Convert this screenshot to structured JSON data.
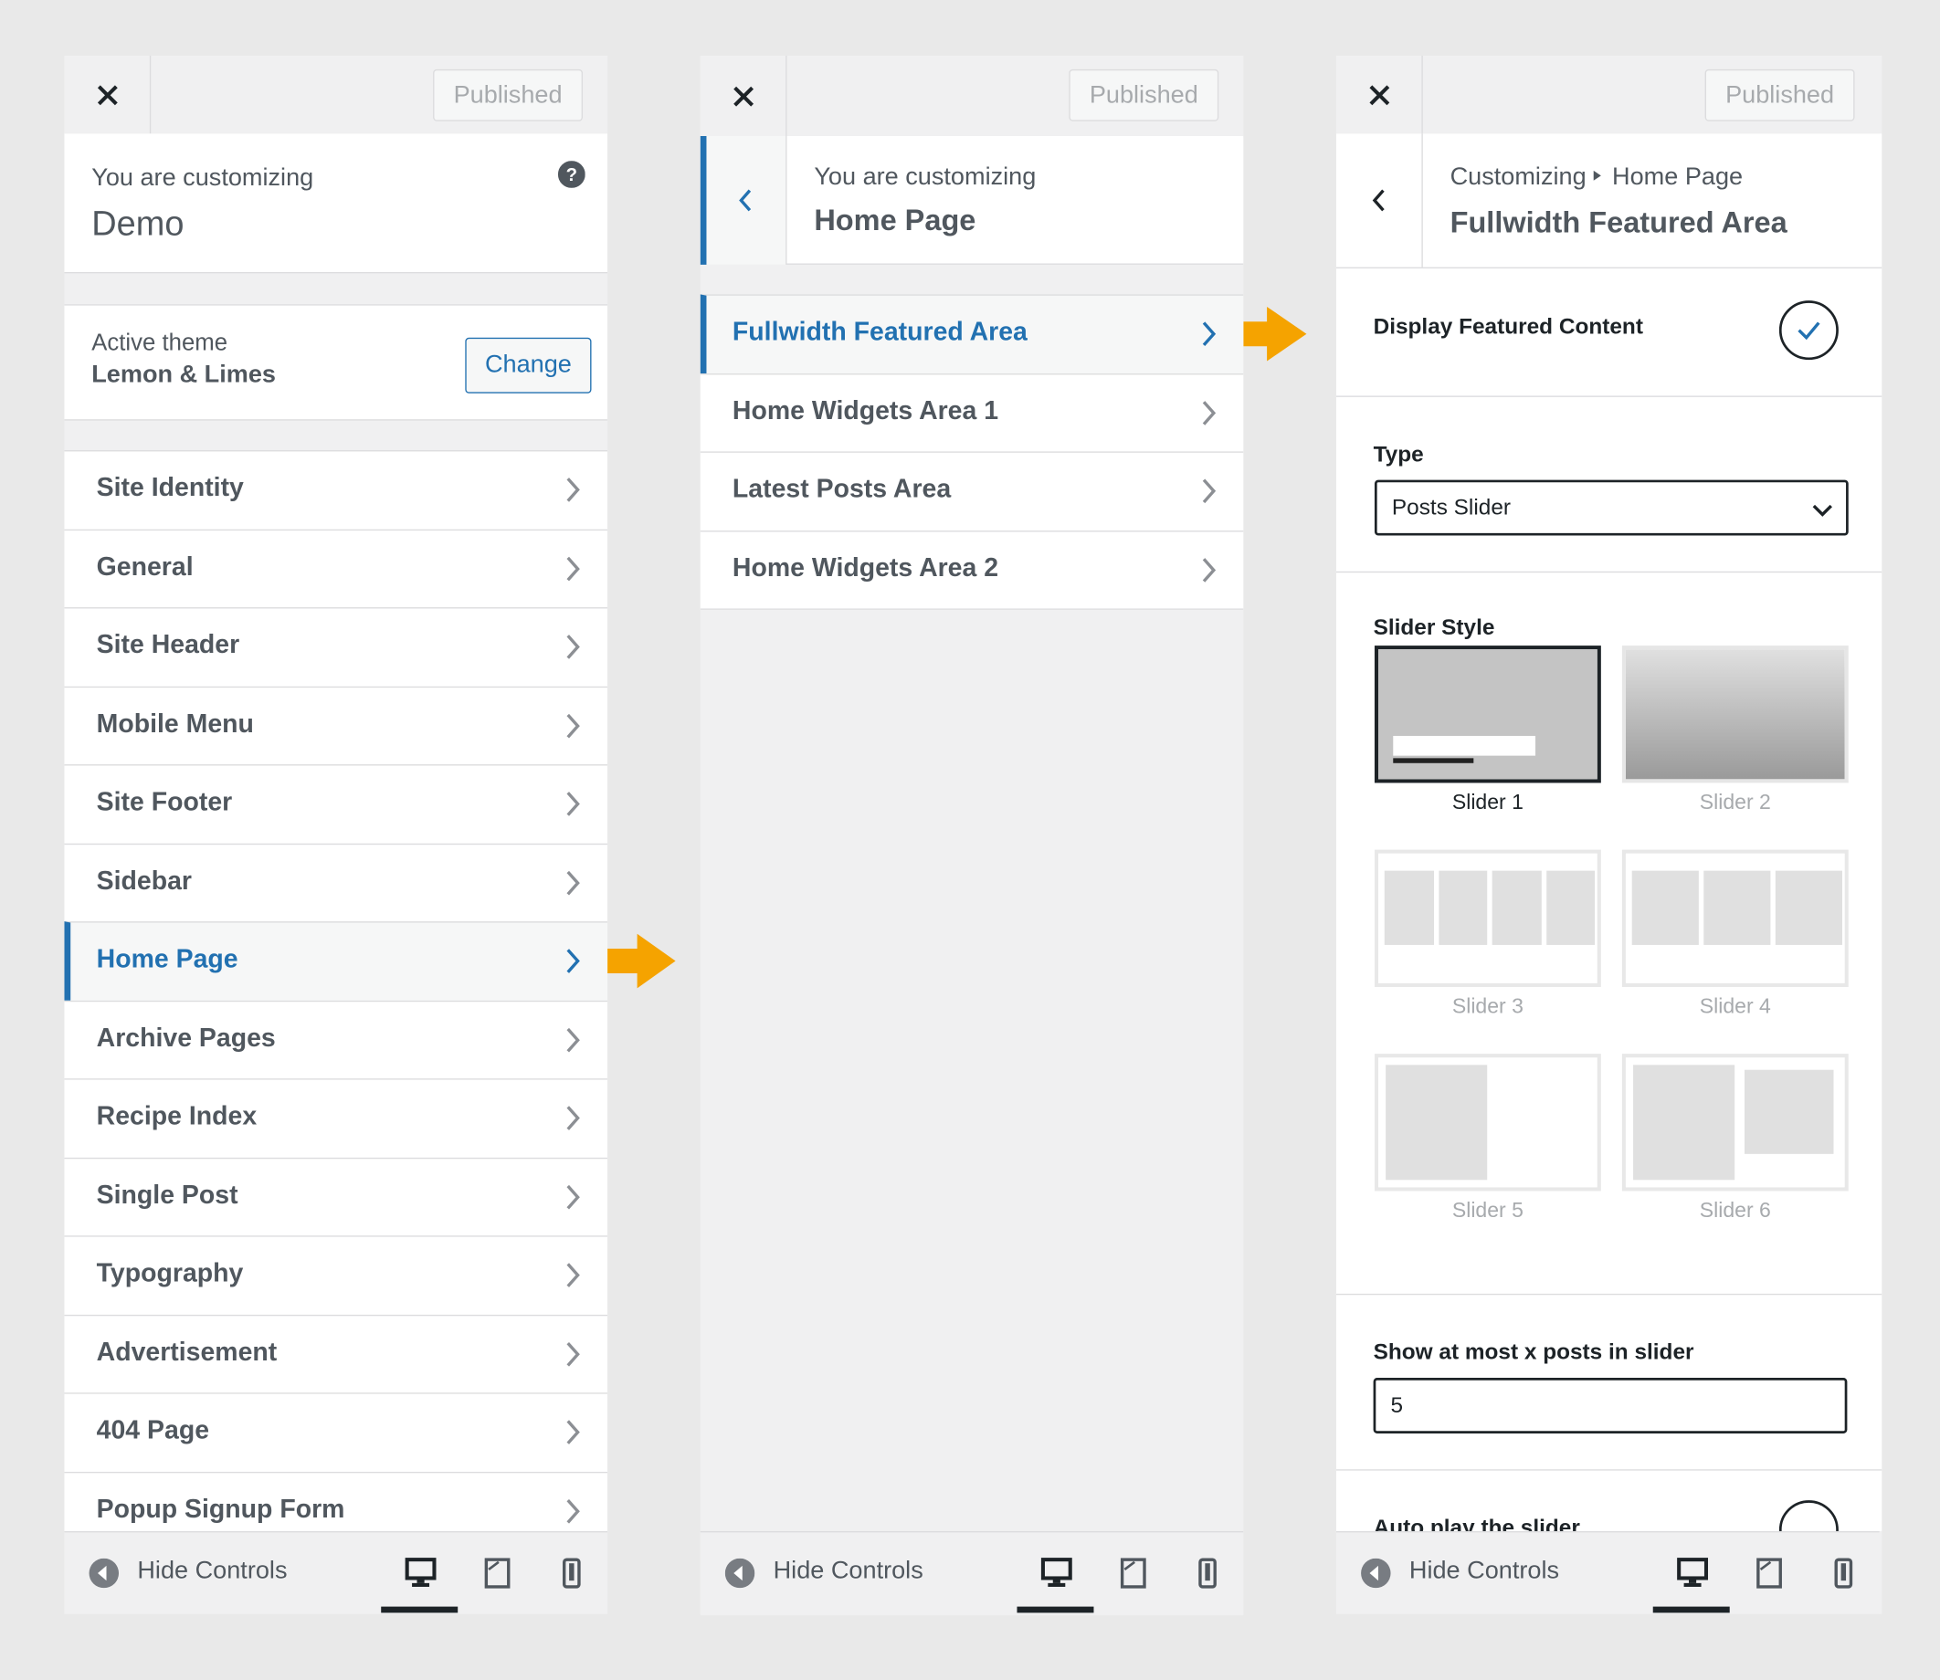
{
  "panels": [
    {
      "published": "Published",
      "customizing_label": "You are customizing",
      "site_name": "Demo",
      "active_theme_label": "Active theme",
      "theme_name": "Lemon & Limes",
      "change_button": "Change",
      "items": [
        "Site Identity",
        "General",
        "Site Header",
        "Mobile Menu",
        "Site Footer",
        "Sidebar",
        "Home Page",
        "Archive Pages",
        "Recipe Index",
        "Single Post",
        "Typography",
        "Advertisement",
        "404 Page",
        "Popup Signup Form"
      ],
      "footer": "Hide Controls"
    },
    {
      "published": "Published",
      "customizing_label": "You are customizing",
      "title": "Home Page",
      "items": [
        "Fullwidth Featured Area",
        "Home Widgets Area 1",
        "Latest Posts Area",
        "Home Widgets Area 2"
      ],
      "footer": "Hide Controls"
    },
    {
      "published": "Published",
      "breadcrumb": [
        "Customizing",
        "Home Page"
      ],
      "title": "Fullwidth Featured Area",
      "display_label": "Display Featured Content",
      "type_label": "Type",
      "type_value": "Posts Slider",
      "slider_style_label": "Slider Style",
      "sliders": [
        "Slider 1",
        "Slider 2",
        "Slider 3",
        "Slider 4",
        "Slider 5",
        "Slider 6"
      ],
      "max_posts_label": "Show at most x posts in slider",
      "max_posts_value": "5",
      "autoplay_label": "Auto play the slider",
      "footer": "Hide Controls"
    }
  ]
}
